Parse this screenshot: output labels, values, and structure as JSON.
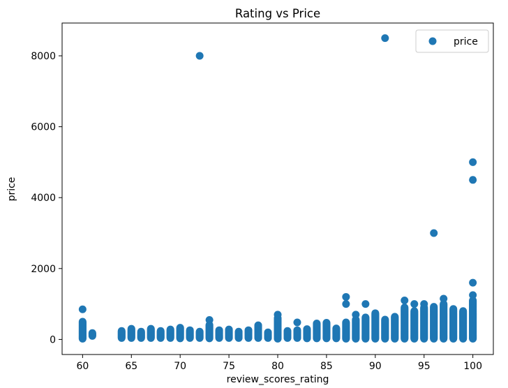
{
  "chart_data": {
    "type": "scatter",
    "title": "Rating vs Price",
    "xlabel": "review_scores_rating",
    "ylabel": "price",
    "xlim": [
      57.9,
      102.1
    ],
    "ylim": [
      -425,
      8925
    ],
    "xticks": [
      60,
      65,
      70,
      75,
      80,
      85,
      90,
      95,
      100
    ],
    "yticks": [
      0,
      2000,
      4000,
      6000,
      8000
    ],
    "grid": false,
    "legend_position": "top-right",
    "marker_color": "#1f77b4",
    "series": [
      {
        "name": "price",
        "columns": [
          {
            "x": 60,
            "min": 20,
            "max": 500
          },
          {
            "x": 61,
            "min": 100,
            "max": 180
          },
          {
            "x": 64,
            "min": 40,
            "max": 240
          },
          {
            "x": 65,
            "min": 40,
            "max": 300
          },
          {
            "x": 66,
            "min": 40,
            "max": 220
          },
          {
            "x": 67,
            "min": 40,
            "max": 300
          },
          {
            "x": 68,
            "min": 40,
            "max": 250
          },
          {
            "x": 69,
            "min": 40,
            "max": 280
          },
          {
            "x": 70,
            "min": 30,
            "max": 340
          },
          {
            "x": 71,
            "min": 40,
            "max": 260
          },
          {
            "x": 72,
            "min": 40,
            "max": 230
          },
          {
            "x": 73,
            "min": 30,
            "max": 420
          },
          {
            "x": 74,
            "min": 40,
            "max": 260
          },
          {
            "x": 75,
            "min": 40,
            "max": 290
          },
          {
            "x": 76,
            "min": 40,
            "max": 230
          },
          {
            "x": 77,
            "min": 40,
            "max": 270
          },
          {
            "x": 78,
            "min": 40,
            "max": 400
          },
          {
            "x": 79,
            "min": 40,
            "max": 200
          },
          {
            "x": 80,
            "min": 20,
            "max": 600
          },
          {
            "x": 81,
            "min": 40,
            "max": 240
          },
          {
            "x": 82,
            "min": 40,
            "max": 260
          },
          {
            "x": 83,
            "min": 30,
            "max": 300
          },
          {
            "x": 84,
            "min": 30,
            "max": 450
          },
          {
            "x": 85,
            "min": 30,
            "max": 480
          },
          {
            "x": 86,
            "min": 30,
            "max": 320
          },
          {
            "x": 87,
            "min": 20,
            "max": 480
          },
          {
            "x": 88,
            "min": 20,
            "max": 560
          },
          {
            "x": 89,
            "min": 20,
            "max": 620
          },
          {
            "x": 90,
            "min": 20,
            "max": 750
          },
          {
            "x": 91,
            "min": 20,
            "max": 560
          },
          {
            "x": 92,
            "min": 20,
            "max": 640
          },
          {
            "x": 93,
            "min": 20,
            "max": 900
          },
          {
            "x": 94,
            "min": 20,
            "max": 800
          },
          {
            "x": 95,
            "min": 20,
            "max": 900
          },
          {
            "x": 96,
            "min": 20,
            "max": 920
          },
          {
            "x": 97,
            "min": 20,
            "max": 1000
          },
          {
            "x": 98,
            "min": 20,
            "max": 860
          },
          {
            "x": 99,
            "min": 20,
            "max": 800
          },
          {
            "x": 100,
            "min": 20,
            "max": 1100
          }
        ],
        "points": [
          {
            "x": 60,
            "y": 850
          },
          {
            "x": 72,
            "y": 8000
          },
          {
            "x": 73,
            "y": 550
          },
          {
            "x": 80,
            "y": 700
          },
          {
            "x": 82,
            "y": 480
          },
          {
            "x": 87,
            "y": 1200
          },
          {
            "x": 87,
            "y": 1000
          },
          {
            "x": 88,
            "y": 700
          },
          {
            "x": 89,
            "y": 1000
          },
          {
            "x": 91,
            "y": 8500
          },
          {
            "x": 93,
            "y": 1100
          },
          {
            "x": 94,
            "y": 1000
          },
          {
            "x": 95,
            "y": 1000
          },
          {
            "x": 96,
            "y": 3000
          },
          {
            "x": 97,
            "y": 1150
          },
          {
            "x": 100,
            "y": 5000
          },
          {
            "x": 100,
            "y": 4500
          },
          {
            "x": 100,
            "y": 1600
          },
          {
            "x": 100,
            "y": 1250
          }
        ]
      }
    ]
  }
}
